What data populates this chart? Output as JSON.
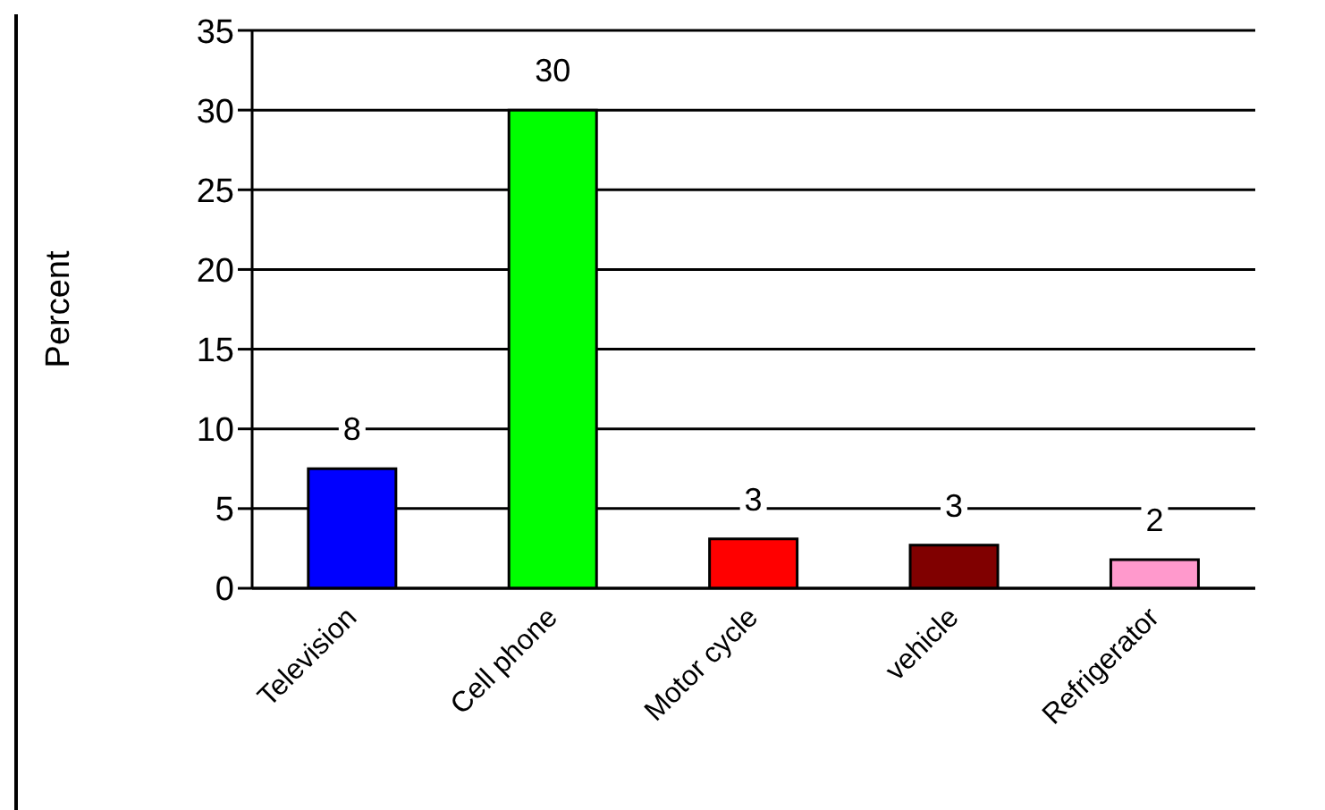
{
  "chart_data": {
    "type": "bar",
    "ylabel": "Percent",
    "categories": [
      "Television",
      "Cell phone",
      "Motor cycle",
      "vehicle",
      "Refrigerator"
    ],
    "values": [
      7.5,
      30,
      3.1,
      2.7,
      1.8
    ],
    "value_labels": [
      "8",
      "30",
      "3",
      "3",
      "2"
    ],
    "colors": [
      "#0000ff",
      "#00ff00",
      "#ff0000",
      "#800000",
      "#ff99cc"
    ],
    "ylim": [
      0,
      35
    ],
    "yticks": [
      0,
      5,
      10,
      15,
      20,
      25,
      30,
      35
    ],
    "grid": "y",
    "legend": false
  }
}
